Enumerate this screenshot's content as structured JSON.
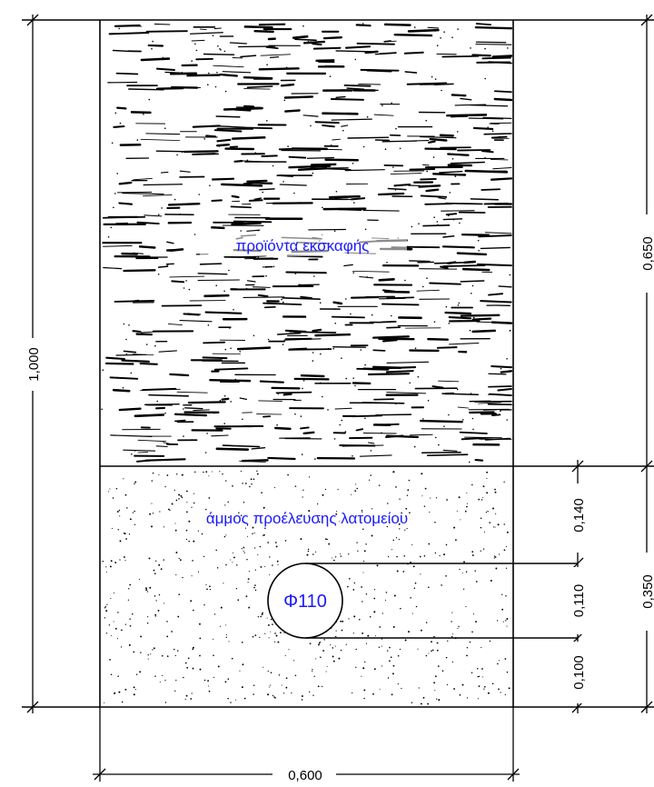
{
  "diagram": {
    "labels": {
      "excavation_fill": "προϊόντα εκσκαφής",
      "quarry_sand": "άμμος προέλευσης λατομείου",
      "pipe": "Φ110"
    },
    "dimensions": {
      "total_depth": "1,000",
      "excavation_depth": "0,650",
      "sand_depth": "0,350",
      "sand_above_pipe": "0,140",
      "pipe_diameter": "0,110",
      "sand_below_pipe": "0,100",
      "trench_width": "0,600"
    },
    "colors": {
      "line": "#000000",
      "label": "#1a1aff"
    }
  }
}
